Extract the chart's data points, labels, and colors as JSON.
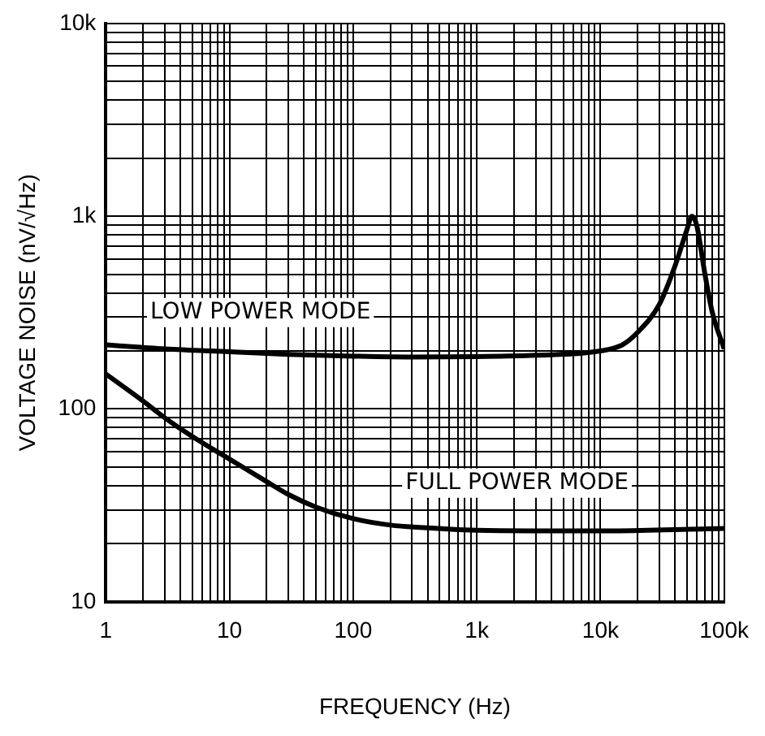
{
  "chart_data": {
    "type": "line",
    "xlabel": "FREQUENCY (Hz)",
    "ylabel": "VOLTAGE NOISE (nV/√Hz)",
    "log": "xy",
    "grid": true,
    "legend": false,
    "marker": "none",
    "line_style": "solid",
    "xlim": [
      1,
      100000
    ],
    "ylim": [
      10,
      10000
    ],
    "xticks": [
      1,
      {
        "value": 2,
        "label": null
      },
      {
        "value": 3,
        "label": null
      },
      {
        "value": 4,
        "label": null
      },
      {
        "value": 5,
        "label": null
      },
      {
        "value": 6,
        "label": null
      },
      {
        "value": 7,
        "label": null
      },
      {
        "value": 8,
        "label": null
      },
      {
        "value": 9,
        "label": null
      },
      10,
      {
        "value": 20,
        "label": null
      },
      {
        "value": 30,
        "label": null
      },
      {
        "value": 40,
        "label": null
      },
      {
        "value": 50,
        "label": null
      },
      {
        "value": 60,
        "label": null
      },
      {
        "value": 70,
        "label": null
      },
      {
        "value": 80,
        "label": null
      },
      {
        "value": 90,
        "label": null
      },
      100,
      {
        "value": 200,
        "label": null
      },
      {
        "value": 300,
        "label": null
      },
      {
        "value": 400,
        "label": null
      },
      {
        "value": 500,
        "label": null
      },
      {
        "value": 600,
        "label": null
      },
      {
        "value": 700,
        "label": null
      },
      {
        "value": 800,
        "label": null
      },
      {
        "value": 900,
        "label": null
      },
      {
        "value": 1000,
        "label": "1k"
      },
      {
        "value": 2000,
        "label": null
      },
      {
        "value": 3000,
        "label": null
      },
      {
        "value": 4000,
        "label": null
      },
      {
        "value": 5000,
        "label": null
      },
      {
        "value": 6000,
        "label": null
      },
      {
        "value": 7000,
        "label": null
      },
      {
        "value": 8000,
        "label": null
      },
      {
        "value": 9000,
        "label": null
      },
      {
        "value": 10000,
        "label": "10k"
      },
      {
        "value": 20000,
        "label": null
      },
      {
        "value": 30000,
        "label": null
      },
      {
        "value": 40000,
        "label": null
      },
      {
        "value": 50000,
        "label": null
      },
      {
        "value": 60000,
        "label": null
      },
      {
        "value": 70000,
        "label": null
      },
      {
        "value": 80000,
        "label": null
      },
      {
        "value": 90000,
        "label": null
      },
      {
        "value": 100000,
        "label": "100k"
      }
    ],
    "yticks": [
      10,
      {
        "value": 20,
        "label": null
      },
      {
        "value": 30,
        "label": null
      },
      {
        "value": 40,
        "label": null
      },
      {
        "value": 50,
        "label": null
      },
      {
        "value": 60,
        "label": null
      },
      {
        "value": 70,
        "label": null
      },
      {
        "value": 80,
        "label": null
      },
      {
        "value": 90,
        "label": null
      },
      100,
      {
        "value": 200,
        "label": null
      },
      {
        "value": 300,
        "label": null
      },
      {
        "value": 400,
        "label": null
      },
      {
        "value": 500,
        "label": null
      },
      {
        "value": 600,
        "label": null
      },
      {
        "value": 700,
        "label": null
      },
      {
        "value": 800,
        "label": null
      },
      {
        "value": 900,
        "label": null
      },
      {
        "value": 1000,
        "label": "1k"
      },
      {
        "value": 2000,
        "label": null
      },
      {
        "value": 3000,
        "label": null
      },
      {
        "value": 4000,
        "label": null
      },
      {
        "value": 5000,
        "label": null
      },
      {
        "value": 6000,
        "label": null
      },
      {
        "value": 7000,
        "label": null
      },
      {
        "value": 8000,
        "label": null
      },
      {
        "value": 9000,
        "label": null
      },
      {
        "value": 10000,
        "label": "10k"
      }
    ],
    "series": [
      {
        "name": "LOW POWER MODE",
        "color": "#000000",
        "x": [
          1,
          3,
          10,
          30,
          100,
          300,
          1000,
          3000,
          10000,
          15000,
          20000,
          30000,
          40000,
          50000,
          55000,
          60000,
          70000,
          80000,
          100000
        ],
        "values": [
          215,
          205,
          198,
          192,
          188,
          186,
          187,
          190,
          200,
          215,
          250,
          350,
          550,
          850,
          1000,
          900,
          500,
          320,
          205
        ]
      },
      {
        "name": "FULL POWER MODE",
        "color": "#000000",
        "x": [
          1,
          2,
          3,
          5,
          10,
          20,
          30,
          50,
          100,
          200,
          500,
          1000,
          10000,
          100000
        ],
        "values": [
          152,
          110,
          90,
          72,
          55,
          42,
          36,
          31,
          27,
          25,
          24,
          23.5,
          23.3,
          24
        ]
      }
    ]
  }
}
